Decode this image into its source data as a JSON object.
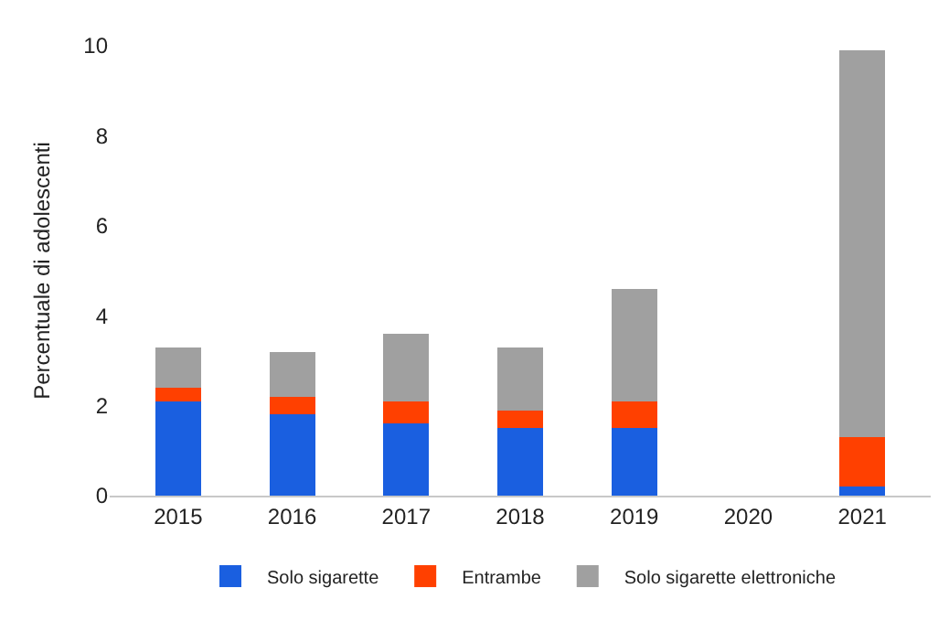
{
  "chart_data": {
    "type": "bar",
    "stacked": true,
    "ylabel": "Percentuale di adolescenti",
    "categories": [
      "2015",
      "2016",
      "2017",
      "2018",
      "2019",
      "2020",
      "2021"
    ],
    "series": [
      {
        "name": "Solo sigarette",
        "color": "#1a5fe0",
        "values": [
          2.1,
          1.8,
          1.6,
          1.5,
          1.5,
          null,
          0.2
        ]
      },
      {
        "name": "Entrambe",
        "color": "#ff4000",
        "values": [
          0.3,
          0.4,
          0.5,
          0.4,
          0.6,
          null,
          1.1
        ]
      },
      {
        "name": "Solo sigarette elettroniche",
        "color": "#a0a0a0",
        "values": [
          0.9,
          1.0,
          1.5,
          1.4,
          2.5,
          null,
          8.6
        ]
      }
    ],
    "ylim": [
      0,
      10
    ],
    "yticks": [
      0,
      2,
      4,
      6,
      8,
      10
    ],
    "legend": "bottom"
  }
}
